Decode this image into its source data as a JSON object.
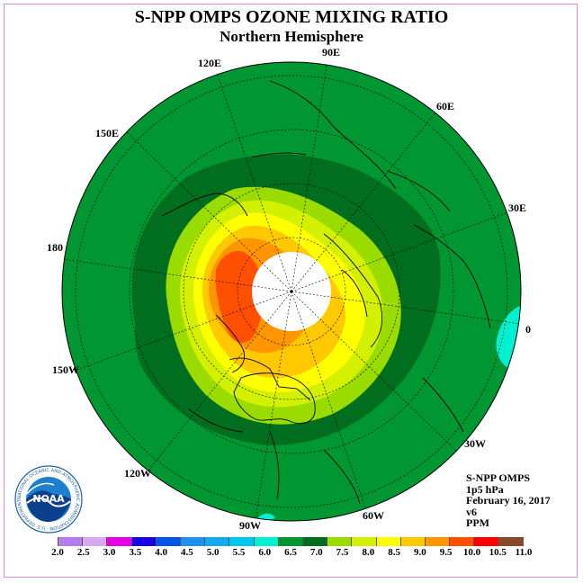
{
  "title": "S-NPP OMPS OZONE MIXING RATIO",
  "subtitle": "Northern Hemisphere",
  "longitude_labels": [
    "90E",
    "60E",
    "30E",
    "0",
    "30W",
    "60W",
    "90W",
    "120W",
    "150W",
    "180",
    "150E",
    "120E"
  ],
  "info": {
    "instrument": "S-NPP OMPS",
    "level": "1p5 hPa",
    "date": "February 16, 2017",
    "version": "v6",
    "units": "PPM"
  },
  "logo": {
    "text": "NOAA",
    "ring_text": "NATIONAL OCEANIC AND ATMOSPHERIC ADMINISTRATION · U.S. DEPARTMENT OF COMMERCE"
  },
  "colorbar": {
    "ticks": [
      "2.0",
      "2.5",
      "3.0",
      "3.5",
      "4.0",
      "4.5",
      "5.0",
      "5.5",
      "6.0",
      "6.5",
      "7.0",
      "7.5",
      "8.0",
      "8.5",
      "9.0",
      "9.5",
      "10.0",
      "10.5",
      "11.0"
    ],
    "colors": [
      "#b57cf0",
      "#d8a8f0",
      "#e600e6",
      "#1a00e6",
      "#0055e6",
      "#1e90f0",
      "#14a8f0",
      "#00c8f0",
      "#00f0d2",
      "#009632",
      "#006e1e",
      "#9bdc00",
      "#d2f000",
      "#ffff00",
      "#ffc800",
      "#ff9600",
      "#ff5000",
      "#ff0000",
      "#8c4628"
    ]
  }
}
